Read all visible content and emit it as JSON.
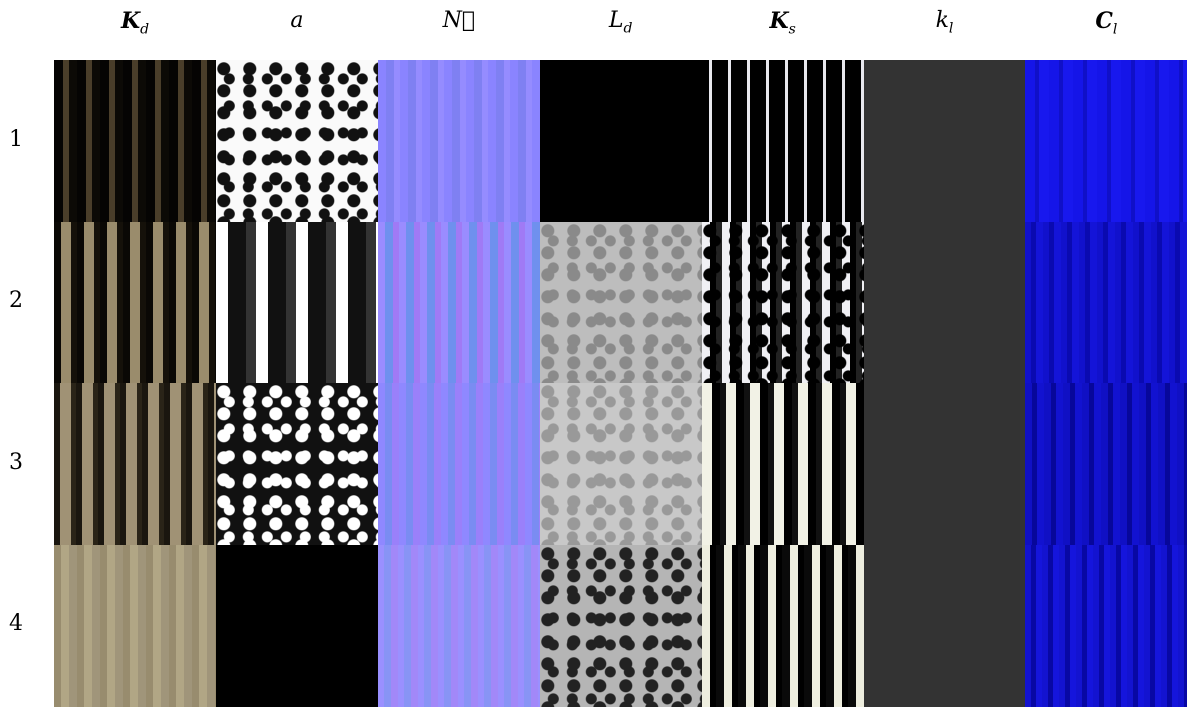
{
  "columns": [
    {
      "base": "K",
      "sub": "d"
    },
    {
      "base": "a"
    },
    {
      "base": "N⃗"
    },
    {
      "base": "L",
      "sub": "d"
    },
    {
      "base": "K",
      "sub": "s"
    },
    {
      "base": "k",
      "sub": "l"
    },
    {
      "base": "C",
      "sub": "l"
    }
  ],
  "rows": [
    "1",
    "2",
    "3",
    "4"
  ]
}
